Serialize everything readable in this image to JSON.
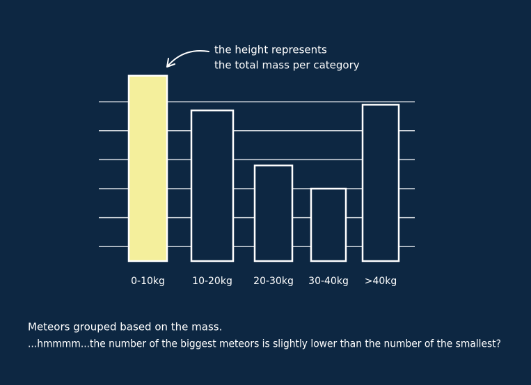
{
  "chart_data": {
    "type": "bar",
    "annotation": [
      "the height represents",
      "the total mass per category"
    ],
    "categories": [
      "0-10kg",
      "10-20kg",
      "20-30kg",
      "30-40kg",
      ">40kg"
    ],
    "values": [
      6.4,
      5.2,
      3.3,
      2.5,
      5.4
    ],
    "color": "#ffffff",
    "highlight": {
      "index": 0,
      "color": "#f4ef9c"
    },
    "ylim": [
      0,
      7
    ],
    "grid_lines": [
      0.5,
      1.5,
      2.5,
      3.5,
      4.5,
      5.5
    ],
    "caption": [
      "Meteors grouped based on the mass.",
      "...hmmmm...the number of the biggest meteors is slightly lower than the number of the smallest?"
    ]
  }
}
